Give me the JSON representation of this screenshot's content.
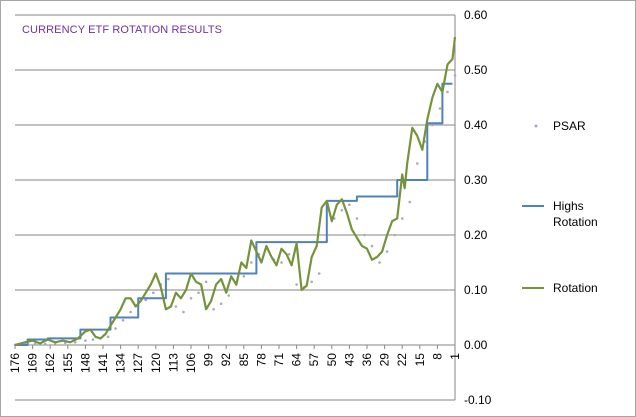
{
  "chart_data": {
    "type": "line",
    "title": "CURRENCY ETF ROTATION RESULTS",
    "xlabel": "",
    "ylabel": "",
    "x_reversed": true,
    "x_range": [
      176,
      1
    ],
    "x_tick_labels": [
      "176",
      "169",
      "162",
      "155",
      "148",
      "141",
      "134",
      "127",
      "120",
      "113",
      "106",
      "99",
      "92",
      "85",
      "78",
      "71",
      "64",
      "57",
      "50",
      "43",
      "36",
      "29",
      "22",
      "15",
      "8",
      "1"
    ],
    "y_axis_position": "right",
    "ylim": [
      -0.1,
      0.6
    ],
    "y_ticks": [
      "-0.10",
      "0.00",
      "0.10",
      "0.20",
      "0.30",
      "0.40",
      "0.50",
      "0.60"
    ],
    "grid": "horizontal",
    "legend_position": "right",
    "series": [
      {
        "name": "PSAR",
        "style": "dots",
        "color": "#a6a6c8",
        "x": [
          176,
          172,
          168,
          164,
          160,
          156,
          152,
          148,
          145,
          142,
          139,
          136,
          133,
          130,
          127,
          124,
          121,
          118,
          115,
          112,
          109,
          106,
          103,
          100,
          97,
          94,
          91,
          88,
          85,
          82,
          79,
          76,
          73,
          70,
          67,
          64,
          61,
          58,
          55,
          52,
          49,
          46,
          43,
          40,
          37,
          34,
          31,
          28,
          25,
          22,
          19,
          16,
          13,
          10,
          7,
          4,
          1
        ],
        "values": [
          0.0,
          0.001,
          0.002,
          0.002,
          0.003,
          0.004,
          0.005,
          0.008,
          0.01,
          0.012,
          0.015,
          0.03,
          0.045,
          0.06,
          0.072,
          0.082,
          0.095,
          0.11,
          0.12,
          0.07,
          0.06,
          0.085,
          0.095,
          0.115,
          0.065,
          0.075,
          0.09,
          0.11,
          0.125,
          0.15,
          0.165,
          0.175,
          0.155,
          0.15,
          0.165,
          0.11,
          0.105,
          0.115,
          0.13,
          0.19,
          0.23,
          0.245,
          0.255,
          0.23,
          0.2,
          0.18,
          0.15,
          0.17,
          0.2,
          0.23,
          0.26,
          0.33,
          0.37,
          0.4,
          0.43,
          0.46,
          0.49
        ]
      },
      {
        "name": "Highs Rotation",
        "style": "step",
        "color": "#4f81bd",
        "x": [
          176,
          171,
          171,
          163,
          163,
          150,
          150,
          138,
          138,
          127,
          127,
          116,
          116,
          90,
          90,
          80,
          80,
          52,
          52,
          40,
          40,
          24,
          24,
          12,
          12,
          6,
          6,
          2
        ],
        "values": [
          0.0,
          0.0,
          0.01,
          0.01,
          0.012,
          0.012,
          0.028,
          0.028,
          0.05,
          0.05,
          0.085,
          0.085,
          0.13,
          0.13,
          0.13,
          0.13,
          0.187,
          0.187,
          0.262,
          0.262,
          0.27,
          0.27,
          0.3,
          0.3,
          0.403,
          0.403,
          0.475,
          0.475
        ]
      },
      {
        "name": "Rotation",
        "style": "line",
        "color": "#76933c",
        "x": [
          176,
          172,
          169,
          166,
          163,
          160,
          157,
          154,
          151,
          148,
          146,
          144,
          142,
          140,
          138,
          136,
          134,
          132,
          130,
          128,
          126,
          124,
          122,
          120,
          118,
          116,
          114,
          112,
          110,
          108,
          106,
          104,
          102,
          100,
          98,
          96,
          94,
          92,
          90,
          88,
          86,
          84,
          82,
          80,
          78,
          76,
          74,
          72,
          70,
          68,
          66,
          64,
          62,
          60,
          58,
          56,
          54,
          52,
          50,
          48,
          46,
          44,
          42,
          40,
          38,
          36,
          34,
          32,
          30,
          28,
          26,
          24,
          22,
          21,
          20,
          18,
          16,
          14,
          12,
          10,
          8,
          6,
          4,
          2,
          1
        ],
        "values": [
          0.0,
          0.005,
          0.008,
          0.003,
          0.01,
          0.005,
          0.008,
          0.005,
          0.012,
          0.025,
          0.028,
          0.015,
          0.012,
          0.02,
          0.035,
          0.05,
          0.065,
          0.085,
          0.085,
          0.07,
          0.08,
          0.095,
          0.11,
          0.13,
          0.105,
          0.065,
          0.07,
          0.095,
          0.085,
          0.1,
          0.13,
          0.115,
          0.11,
          0.065,
          0.08,
          0.11,
          0.12,
          0.095,
          0.125,
          0.11,
          0.15,
          0.14,
          0.19,
          0.17,
          0.15,
          0.18,
          0.16,
          0.145,
          0.175,
          0.165,
          0.145,
          0.185,
          0.1,
          0.108,
          0.16,
          0.18,
          0.25,
          0.262,
          0.225,
          0.255,
          0.265,
          0.24,
          0.21,
          0.195,
          0.18,
          0.175,
          0.155,
          0.16,
          0.17,
          0.2,
          0.225,
          0.23,
          0.31,
          0.285,
          0.33,
          0.395,
          0.38,
          0.355,
          0.41,
          0.45,
          0.475,
          0.46,
          0.51,
          0.52,
          0.56
        ]
      }
    ]
  }
}
